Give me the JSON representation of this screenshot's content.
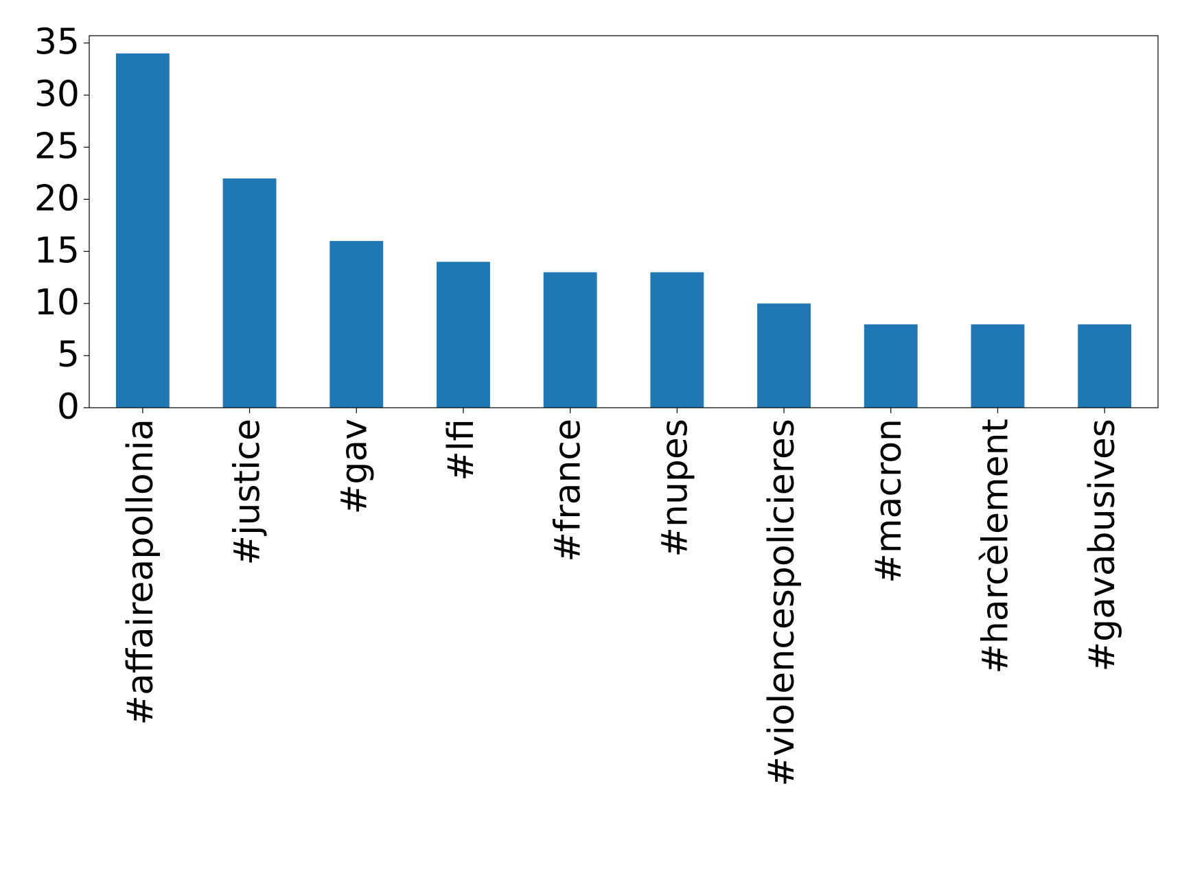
{
  "chart_data": {
    "type": "bar",
    "categories": [
      "#affaireapollonia",
      "#justice",
      "#gav",
      "#lfi",
      "#france",
      "#nupes",
      "#violencespolicieres",
      "#macron",
      "#harcèlement",
      "#gavabusives"
    ],
    "values": [
      34,
      22,
      16,
      14,
      13,
      13,
      10,
      8,
      8,
      8
    ],
    "color": "#1f77b4",
    "ylim": [
      0,
      35.7
    ],
    "yticks": [
      0,
      5,
      10,
      15,
      20,
      25,
      30,
      35
    ],
    "grid": false
  }
}
